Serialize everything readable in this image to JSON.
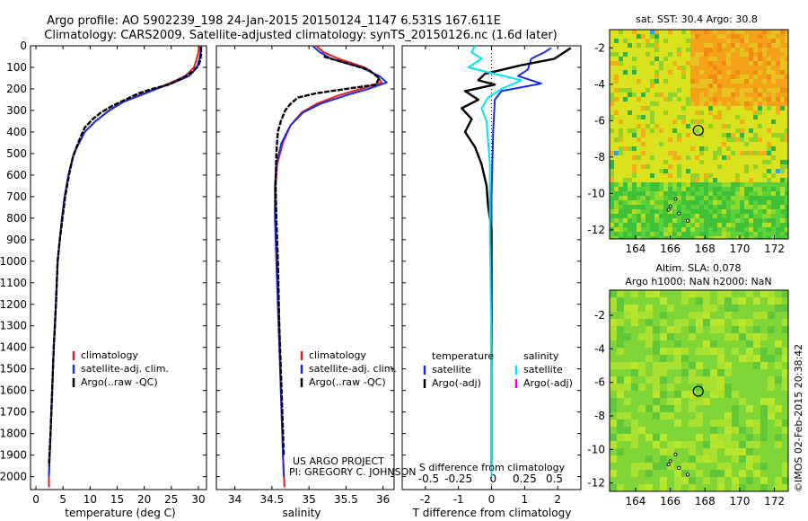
{
  "title_line1": "Argo profile: AO 5902239_198 24-Jan-2015 20150124_1147 6.531S 167.611E",
  "title_line2": "Climatology: CARS2009. Satellite-adjusted climatology: synTS_20150126.nc (1.6d later)",
  "credit": "©IMOS 02-Feb-2015 20:38:42",
  "project_line1": "US ARGO PROJECT",
  "project_line2": "PI: GREGORY C. JOHNSON",
  "colors": {
    "climatology": "#e02020",
    "satellite": "#1a2ee0",
    "argo": "#000000",
    "sal_satellite": "#00e5f0",
    "sal_argo": "#e000e0"
  },
  "chart_data": [
    {
      "id": "temperature",
      "type": "line",
      "xlabel": "temperature (deg C)",
      "xlim": [
        -1,
        31.5
      ],
      "ylim": [
        0,
        2060
      ],
      "xticks": [
        0,
        5,
        10,
        15,
        20,
        25,
        30
      ],
      "yticks": [
        0,
        100,
        200,
        300,
        400,
        500,
        600,
        700,
        800,
        900,
        1000,
        1100,
        1200,
        1300,
        1400,
        1500,
        1600,
        1700,
        1800,
        1900,
        2000
      ],
      "legend": [
        "climatology",
        "satellite-adj. clim.",
        "Argo(..raw -QC)"
      ],
      "series": [
        {
          "name": "climatology",
          "color": "#e02020",
          "points": [
            [
              30.2,
              0
            ],
            [
              30.0,
              30
            ],
            [
              29.7,
              60
            ],
            [
              29.2,
              100
            ],
            [
              27.6,
              140
            ],
            [
              25.0,
              170
            ],
            [
              22.0,
              200
            ],
            [
              19.0,
              230
            ],
            [
              16.0,
              260
            ],
            [
              13.5,
              300
            ],
            [
              11.0,
              350
            ],
            [
              9.0,
              400
            ],
            [
              8.0,
              450
            ],
            [
              7.0,
              500
            ],
            [
              6.0,
              600
            ],
            [
              5.3,
              700
            ],
            [
              4.8,
              800
            ],
            [
              4.4,
              900
            ],
            [
              4.0,
              1000
            ],
            [
              3.7,
              1200
            ],
            [
              3.3,
              1400
            ],
            [
              3.0,
              1600
            ],
            [
              2.7,
              1800
            ],
            [
              2.4,
              2000
            ],
            [
              2.4,
              2050
            ]
          ]
        },
        {
          "name": "satellite-adj. clim.",
          "color": "#1a2ee0",
          "points": [
            [
              30.5,
              0
            ],
            [
              30.4,
              30
            ],
            [
              30.2,
              60
            ],
            [
              29.8,
              100
            ],
            [
              28.3,
              140
            ],
            [
              25.5,
              170
            ],
            [
              22.3,
              200
            ],
            [
              19.3,
              230
            ],
            [
              16.2,
              260
            ],
            [
              13.6,
              300
            ],
            [
              11.0,
              350
            ],
            [
              9.0,
              400
            ],
            [
              8.0,
              450
            ],
            [
              7.0,
              500
            ],
            [
              6.0,
              600
            ],
            [
              5.3,
              700
            ],
            [
              4.8,
              800
            ],
            [
              4.4,
              900
            ],
            [
              4.0,
              1000
            ],
            [
              3.7,
              1200
            ],
            [
              3.3,
              1400
            ],
            [
              3.0,
              1600
            ],
            [
              2.7,
              1800
            ],
            [
              2.4,
              2000
            ]
          ]
        },
        {
          "name": "Argo",
          "color": "#000000",
          "points": [
            [
              30.5,
              5
            ],
            [
              30.5,
              40
            ],
            [
              30.3,
              70
            ],
            [
              30.0,
              90
            ],
            [
              29.0,
              120
            ],
            [
              27.0,
              150
            ],
            [
              24.5,
              180
            ],
            [
              21.5,
              200
            ],
            [
              19.0,
              220
            ],
            [
              16.5,
              250
            ],
            [
              14.0,
              280
            ],
            [
              12.0,
              310
            ],
            [
              10.5,
              340
            ],
            [
              9.0,
              380
            ],
            [
              8.3,
              420
            ],
            [
              7.5,
              470
            ],
            [
              6.8,
              520
            ],
            [
              6.1,
              600
            ],
            [
              5.4,
              700
            ],
            [
              4.9,
              800
            ],
            [
              4.4,
              900
            ],
            [
              4.0,
              1000
            ],
            [
              3.7,
              1200
            ],
            [
              3.3,
              1400
            ],
            [
              3.0,
              1600
            ],
            [
              2.7,
              1800
            ],
            [
              2.4,
              1950
            ]
          ]
        }
      ]
    },
    {
      "id": "salinity",
      "type": "line",
      "xlabel": "salinity",
      "xlim": [
        33.75,
        36.15
      ],
      "ylim": [
        0,
        2060
      ],
      "xticks": [
        34,
        34.5,
        35,
        35.5,
        36
      ],
      "legend": [
        "climatology",
        "satellite-adj. clim.",
        "Argo(..raw -QC)"
      ],
      "series": [
        {
          "name": "climatology",
          "color": "#e02020",
          "points": [
            [
              35.1,
              0
            ],
            [
              35.2,
              30
            ],
            [
              35.4,
              60
            ],
            [
              35.75,
              100
            ],
            [
              35.92,
              140
            ],
            [
              35.98,
              170
            ],
            [
              35.7,
              200
            ],
            [
              35.4,
              230
            ],
            [
              35.1,
              270
            ],
            [
              34.9,
              310
            ],
            [
              34.75,
              370
            ],
            [
              34.65,
              450
            ],
            [
              34.57,
              550
            ],
            [
              34.55,
              650
            ],
            [
              34.55,
              800
            ],
            [
              34.57,
              1000
            ],
            [
              34.6,
              1300
            ],
            [
              34.62,
              1600
            ],
            [
              34.65,
              1900
            ],
            [
              34.67,
              2050
            ]
          ]
        },
        {
          "name": "satellite-adj. clim.",
          "color": "#1a2ee0",
          "points": [
            [
              35.05,
              0
            ],
            [
              35.15,
              30
            ],
            [
              35.3,
              60
            ],
            [
              35.7,
              100
            ],
            [
              35.95,
              140
            ],
            [
              36.05,
              170
            ],
            [
              35.8,
              200
            ],
            [
              35.5,
              230
            ],
            [
              35.15,
              270
            ],
            [
              34.92,
              310
            ],
            [
              34.75,
              370
            ],
            [
              34.63,
              450
            ],
            [
              34.56,
              550
            ],
            [
              34.54,
              650
            ],
            [
              34.54,
              800
            ],
            [
              34.56,
              1000
            ],
            [
              34.59,
              1300
            ],
            [
              34.62,
              1600
            ],
            [
              34.65,
              1900
            ],
            [
              34.66,
              2000
            ]
          ]
        },
        {
          "name": "Argo",
          "color": "#000000",
          "points": [
            [
              35.2,
              50
            ],
            [
              35.5,
              80
            ],
            [
              35.8,
              110
            ],
            [
              35.95,
              150
            ],
            [
              35.9,
              180
            ],
            [
              35.5,
              200
            ],
            [
              35.1,
              220
            ],
            [
              34.85,
              240
            ],
            [
              34.75,
              270
            ],
            [
              34.68,
              300
            ],
            [
              34.62,
              350
            ],
            [
              34.58,
              400
            ],
            [
              34.56,
              500
            ],
            [
              34.55,
              650
            ],
            [
              34.56,
              800
            ],
            [
              34.58,
              1000
            ],
            [
              34.6,
              1300
            ],
            [
              34.63,
              1600
            ],
            [
              34.66,
              1900
            ]
          ]
        }
      ]
    },
    {
      "id": "differences",
      "type": "line",
      "xlabel": "T difference from climatology",
      "xlabel2": "S difference from climatology",
      "xlim": [
        -2.7,
        2.7
      ],
      "ylim": [
        0,
        2060
      ],
      "xticks": [
        -2,
        -1,
        0,
        1,
        2
      ],
      "xticks_s": [
        "-0.5",
        "-0.25",
        "0",
        "0.25",
        "0.5"
      ],
      "legend_t": [
        "temperature",
        "satellite",
        "Argo(-adj)"
      ],
      "legend_s": [
        "salinity",
        "satellite",
        "Argo(-adj)"
      ],
      "series": [
        {
          "name": "T satellite",
          "color": "#1a2ee0",
          "points": [
            [
              1.8,
              10
            ],
            [
              1.6,
              30
            ],
            [
              1.2,
              60
            ],
            [
              1.1,
              110
            ],
            [
              0.8,
              140
            ],
            [
              1.5,
              175
            ],
            [
              0.3,
              210
            ],
            [
              0.1,
              250
            ],
            [
              0.05,
              400
            ],
            [
              0.0,
              700
            ],
            [
              0.0,
              1000
            ],
            [
              0.0,
              1500
            ],
            [
              0.0,
              2000
            ]
          ]
        },
        {
          "name": "T Argo",
          "color": "#000000",
          "points": [
            [
              2.4,
              10
            ],
            [
              1.9,
              60
            ],
            [
              0.9,
              90
            ],
            [
              -0.2,
              130
            ],
            [
              -0.4,
              160
            ],
            [
              0.1,
              180
            ],
            [
              -0.8,
              210
            ],
            [
              -0.4,
              250
            ],
            [
              -0.9,
              290
            ],
            [
              -0.6,
              340
            ],
            [
              -0.8,
              400
            ],
            [
              -0.5,
              470
            ],
            [
              -0.3,
              550
            ],
            [
              -0.15,
              650
            ],
            [
              -0.1,
              750
            ],
            [
              0.0,
              850
            ],
            [
              0.0,
              1000
            ],
            [
              0.0,
              1500
            ],
            [
              0.0,
              1950
            ]
          ]
        },
        {
          "name": "S satellite",
          "color": "#00e5f0",
          "points": [
            [
              -0.5,
              0
            ],
            [
              -0.6,
              30
            ],
            [
              -0.3,
              60
            ],
            [
              -0.7,
              100
            ],
            [
              0.9,
              160
            ],
            [
              0.3,
              200
            ],
            [
              -0.1,
              240
            ],
            [
              -0.3,
              290
            ],
            [
              -0.15,
              350
            ],
            [
              -0.1,
              450
            ],
            [
              -0.05,
              550
            ],
            [
              -0.05,
              700
            ],
            [
              -0.05,
              900
            ],
            [
              -0.02,
              1200
            ],
            [
              0.0,
              1500
            ],
            [
              0.0,
              2000
            ]
          ]
        }
      ]
    },
    {
      "id": "sst_map",
      "type": "heatmap",
      "title": "sat. SST: 30.4  Argo: 30.8",
      "xlim": [
        162.5,
        172.8
      ],
      "ylim": [
        -12.5,
        -1.0
      ],
      "xticks": [
        164,
        166,
        168,
        170,
        172
      ],
      "yticks": [
        -2,
        -4,
        -6,
        -8,
        -10,
        -12
      ],
      "marker": {
        "lon": 167.611,
        "lat": -6.531
      }
    },
    {
      "id": "sla_map",
      "type": "heatmap",
      "title_line1": "Altim. SLA: 0.078",
      "title_line2": "Argo h1000: NaN h2000: NaN",
      "xlim": [
        162.5,
        172.8
      ],
      "ylim": [
        -12.5,
        -0.5
      ],
      "xticks": [
        164,
        166,
        168,
        170,
        172
      ],
      "yticks": [
        -2,
        -4,
        -6,
        -8,
        -10,
        -12
      ],
      "marker": {
        "lon": 167.611,
        "lat": -6.531
      }
    }
  ]
}
